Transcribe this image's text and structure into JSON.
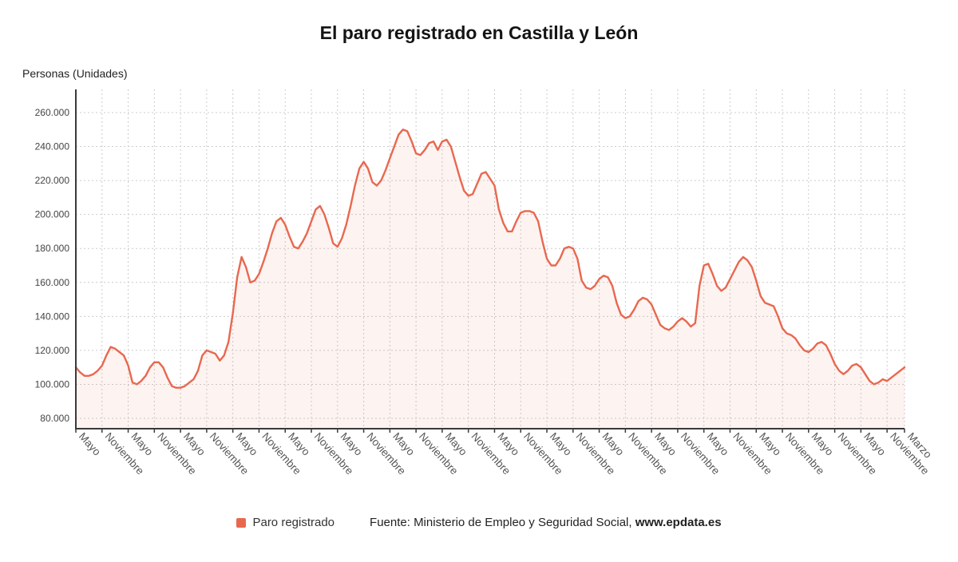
{
  "chart": {
    "title": "El paro registrado en Castilla y León",
    "y_axis_title": "Personas (Unidades)",
    "legend_label": "Paro registrado",
    "source_prefix": "Fuente: Ministerio de Empleo y Seguridad Social, ",
    "source_site": "www.epdata.es"
  },
  "chart_data": {
    "type": "area",
    "title": "El paro registrado en Castilla y León",
    "xlabel": "",
    "ylabel": "Personas (Unidades)",
    "series_name": "Paro registrado",
    "ylim": [
      80000,
      273000
    ],
    "y_ticks": [
      80000,
      100000,
      120000,
      140000,
      160000,
      180000,
      200000,
      220000,
      240000,
      260000
    ],
    "grid": "dashed",
    "legend_position": "bottom",
    "x_tick_labels": [
      [
        0,
        "Mayo"
      ],
      [
        6,
        "Noviembre"
      ],
      [
        12,
        "Mayo"
      ],
      [
        18,
        "Noviembre"
      ],
      [
        24,
        "Mayo"
      ],
      [
        30,
        "Noviembre"
      ],
      [
        36,
        "Mayo"
      ],
      [
        42,
        "Noviembre"
      ],
      [
        48,
        "Mayo"
      ],
      [
        54,
        "Noviembre"
      ],
      [
        60,
        "Mayo"
      ],
      [
        66,
        "Noviembre"
      ],
      [
        72,
        "Mayo"
      ],
      [
        78,
        "Noviembre"
      ],
      [
        84,
        "Mayo"
      ],
      [
        90,
        "Noviembre"
      ],
      [
        96,
        "Mayo"
      ],
      [
        102,
        "Noviembre"
      ],
      [
        108,
        "Mayo"
      ],
      [
        114,
        "Noviembre"
      ],
      [
        120,
        "Mayo"
      ],
      [
        126,
        "Noviembre"
      ],
      [
        132,
        "Mayo"
      ],
      [
        138,
        "Noviembre"
      ],
      [
        144,
        "Mayo"
      ],
      [
        150,
        "Noviembre"
      ],
      [
        156,
        "Mayo"
      ],
      [
        162,
        "Noviembre"
      ],
      [
        168,
        "Mayo"
      ],
      [
        174,
        "Noviembre"
      ],
      [
        180,
        "Mayo"
      ],
      [
        186,
        "Noviembre"
      ],
      [
        190,
        "Marzo"
      ]
    ],
    "values": [
      110000,
      107000,
      105000,
      105000,
      106000,
      108000,
      111000,
      117000,
      122000,
      121000,
      119000,
      117000,
      111000,
      101000,
      100000,
      102000,
      105000,
      110000,
      113000,
      113000,
      110000,
      104000,
      99000,
      98000,
      98000,
      99000,
      101000,
      103000,
      108000,
      117000,
      120000,
      119000,
      118000,
      114000,
      117000,
      125000,
      142000,
      163000,
      175000,
      169000,
      160000,
      161000,
      165000,
      172000,
      180000,
      189000,
      196000,
      198000,
      194000,
      187000,
      181000,
      180000,
      184000,
      189000,
      196000,
      203000,
      205000,
      200000,
      192000,
      183000,
      181000,
      186000,
      194000,
      205000,
      217000,
      227000,
      231000,
      227000,
      219000,
      217000,
      220000,
      226000,
      233000,
      240000,
      247000,
      250000,
      249000,
      243000,
      236000,
      235000,
      238000,
      242000,
      243000,
      238000,
      243000,
      244000,
      240000,
      231000,
      222000,
      214000,
      211000,
      212000,
      218000,
      224000,
      225000,
      221000,
      217000,
      203000,
      195000,
      190000,
      190000,
      196000,
      201000,
      202000,
      202000,
      201000,
      196000,
      184000,
      174000,
      170000,
      170000,
      174000,
      180000,
      181000,
      180000,
      174000,
      161000,
      157000,
      156000,
      158000,
      162000,
      164000,
      163000,
      158000,
      148000,
      141000,
      139000,
      140000,
      144000,
      149000,
      151000,
      150000,
      147000,
      141000,
      135000,
      133000,
      132000,
      134000,
      137000,
      139000,
      137000,
      134000,
      136000,
      158000,
      170000,
      171000,
      165000,
      158000,
      155000,
      157000,
      162000,
      167000,
      172000,
      175000,
      173000,
      169000,
      161000,
      152000,
      148000,
      147000,
      146000,
      140000,
      133000,
      130000,
      129000,
      127000,
      123000,
      120000,
      119000,
      121000,
      124000,
      125000,
      123000,
      118000,
      112000,
      108000,
      106000,
      108000,
      111000,
      112000,
      110000,
      106000,
      102000,
      100000,
      101000,
      103000,
      102000,
      104000,
      106000,
      108000,
      110000
    ],
    "colors": {
      "line": "#e8684f",
      "area": "rgba(232,104,79,0.08)",
      "grid": "#cccccc",
      "axis": "#3a3a3a",
      "tick_text": "#444444",
      "x_tick_text": "#555555"
    }
  }
}
